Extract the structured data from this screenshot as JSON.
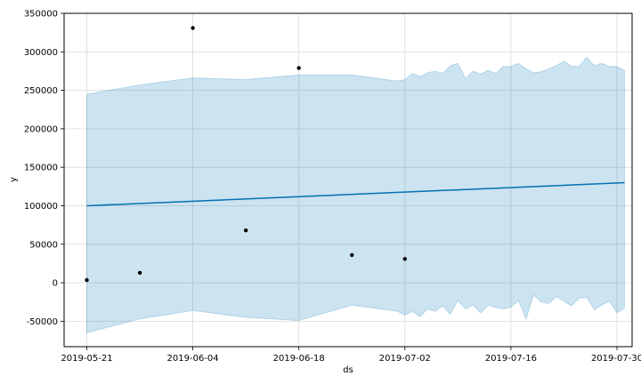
{
  "chart_data": {
    "type": "scatter",
    "title": "",
    "xlabel": "ds",
    "ylabel": "y",
    "grid": true,
    "x_axis": {
      "type": "date",
      "range": [
        "2019-05-18",
        "2019-08-01"
      ],
      "ticks": [
        "2019-05-21",
        "2019-06-04",
        "2019-06-18",
        "2019-07-02",
        "2019-07-16",
        "2019-07-30"
      ]
    },
    "y_axis": {
      "range": [
        -83000,
        350000
      ],
      "ticks": [
        -50000,
        0,
        50000,
        100000,
        150000,
        200000,
        250000,
        300000,
        350000
      ]
    },
    "observed": {
      "color": "#000000",
      "points": [
        {
          "x": "2019-05-21",
          "y": 3500
        },
        {
          "x": "2019-05-28",
          "y": 13000
        },
        {
          "x": "2019-06-04",
          "y": 331000
        },
        {
          "x": "2019-06-11",
          "y": 68000
        },
        {
          "x": "2019-06-18",
          "y": 279000
        },
        {
          "x": "2019-06-25",
          "y": 36000
        },
        {
          "x": "2019-07-02",
          "y": 31000
        }
      ]
    },
    "forecast": {
      "color": "#0072B2",
      "points": [
        {
          "x": "2019-05-21",
          "y": 100000
        },
        {
          "x": "2019-07-31",
          "y": 130000
        }
      ]
    },
    "uncertainty": {
      "color": "#0072B2",
      "opacity": 0.2,
      "points": [
        {
          "x": "2019-05-21",
          "lower": -65000,
          "upper": 245000
        },
        {
          "x": "2019-05-28",
          "lower": -47000,
          "upper": 257000
        },
        {
          "x": "2019-06-04",
          "lower": -36000,
          "upper": 266000
        },
        {
          "x": "2019-06-11",
          "lower": -45000,
          "upper": 264000
        },
        {
          "x": "2019-06-18",
          "lower": -49000,
          "upper": 270000
        },
        {
          "x": "2019-06-25",
          "lower": -29000,
          "upper": 270000
        },
        {
          "x": "2019-07-01",
          "lower": -37000,
          "upper": 262000
        },
        {
          "x": "2019-07-02",
          "lower": -42000,
          "upper": 264000
        },
        {
          "x": "2019-07-03",
          "lower": -37000,
          "upper": 272000
        },
        {
          "x": "2019-07-04",
          "lower": -44000,
          "upper": 268000
        },
        {
          "x": "2019-07-05",
          "lower": -34000,
          "upper": 273000
        },
        {
          "x": "2019-07-06",
          "lower": -37000,
          "upper": 275000
        },
        {
          "x": "2019-07-07",
          "lower": -30000,
          "upper": 272000
        },
        {
          "x": "2019-07-08",
          "lower": -41000,
          "upper": 282000
        },
        {
          "x": "2019-07-09",
          "lower": -23000,
          "upper": 285000
        },
        {
          "x": "2019-07-10",
          "lower": -34000,
          "upper": 265000
        },
        {
          "x": "2019-07-11",
          "lower": -29000,
          "upper": 275000
        },
        {
          "x": "2019-07-12",
          "lower": -39000,
          "upper": 271000
        },
        {
          "x": "2019-07-13",
          "lower": -29000,
          "upper": 276000
        },
        {
          "x": "2019-07-14",
          "lower": -32000,
          "upper": 272000
        },
        {
          "x": "2019-07-15",
          "lower": -34000,
          "upper": 281000
        },
        {
          "x": "2019-07-16",
          "lower": -32000,
          "upper": 281000
        },
        {
          "x": "2019-07-17",
          "lower": -23000,
          "upper": 285000
        },
        {
          "x": "2019-07-18",
          "lower": -47000,
          "upper": 278000
        },
        {
          "x": "2019-07-19",
          "lower": -16000,
          "upper": 273000
        },
        {
          "x": "2019-07-20",
          "lower": -25000,
          "upper": 274000
        },
        {
          "x": "2019-07-21",
          "lower": -27000,
          "upper": 278000
        },
        {
          "x": "2019-07-22",
          "lower": -18000,
          "upper": 282000
        },
        {
          "x": "2019-07-23",
          "lower": -24000,
          "upper": 288000
        },
        {
          "x": "2019-07-24",
          "lower": -30000,
          "upper": 281000
        },
        {
          "x": "2019-07-25",
          "lower": -20000,
          "upper": 281000
        },
        {
          "x": "2019-07-26",
          "lower": -19000,
          "upper": 293000
        },
        {
          "x": "2019-07-27",
          "lower": -35000,
          "upper": 282000
        },
        {
          "x": "2019-07-28",
          "lower": -29000,
          "upper": 285000
        },
        {
          "x": "2019-07-29",
          "lower": -24000,
          "upper": 281000
        },
        {
          "x": "2019-07-30",
          "lower": -39000,
          "upper": 281000
        },
        {
          "x": "2019-07-31",
          "lower": -33000,
          "upper": 276000
        }
      ]
    }
  }
}
